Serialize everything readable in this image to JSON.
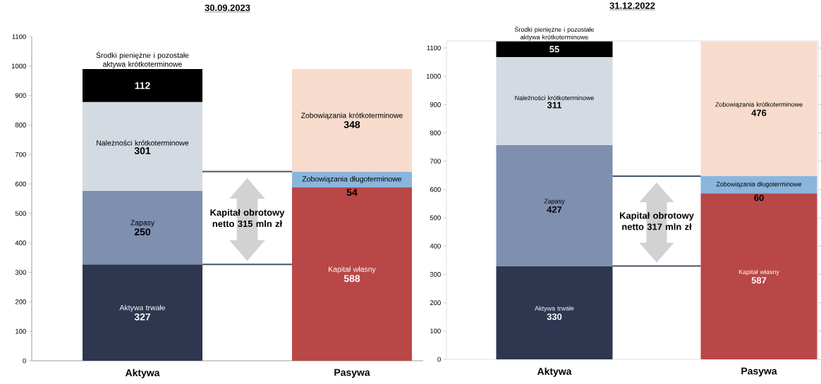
{
  "chart_data": [
    {
      "type": "bar",
      "stacked": true,
      "title": "30.09.2023",
      "categories": [
        "Aktywa",
        "Pasywa"
      ],
      "series": [
        {
          "name": "Aktywa trwałe",
          "color": "#2e3650",
          "values": [
            327,
            null
          ]
        },
        {
          "name": "Zapasy",
          "color": "#7f8fb0",
          "values": [
            250,
            null
          ]
        },
        {
          "name": "Należności krótkoterminowe",
          "color": "#d3dae2",
          "values": [
            301,
            null
          ]
        },
        {
          "name": "Środki pieniężne i pozostałe aktywa krótkoterminowe",
          "color": "#000000",
          "values": [
            112,
            null
          ]
        },
        {
          "name": "Kapitał własny",
          "color": "#b94747",
          "values": [
            null,
            588
          ]
        },
        {
          "name": "Zobowiązania długoterminowe",
          "color": "#8ab6de",
          "values": [
            null,
            54
          ]
        },
        {
          "name": "Zobowiązania krótkoterminowe",
          "color": "#f7dccd",
          "values": [
            null,
            348
          ]
        }
      ],
      "ylim": [
        0,
        1100
      ],
      "yticks": [
        0,
        100,
        200,
        300,
        400,
        500,
        600,
        700,
        800,
        900,
        1000,
        1100
      ],
      "data_labels": true,
      "annotations": [
        "Kapitał obrotowy netto 315 mln zł"
      ]
    },
    {
      "type": "bar",
      "stacked": true,
      "title": "31.12.2022",
      "categories": [
        "Aktywa",
        "Pasywa"
      ],
      "series": [
        {
          "name": "Aktywa trwałe",
          "color": "#2e3650",
          "values": [
            330,
            null
          ]
        },
        {
          "name": "Zapasy",
          "color": "#7f8fb0",
          "values": [
            427,
            null
          ]
        },
        {
          "name": "Należności krótkoterminowe",
          "color": "#d3dae2",
          "values": [
            311,
            null
          ]
        },
        {
          "name": "Środki pieniężne i pozostałe aktywa krótkoterminowe",
          "color": "#000000",
          "values": [
            55,
            null
          ]
        },
        {
          "name": "Kapitał własny",
          "color": "#b94747",
          "values": [
            null,
            587
          ]
        },
        {
          "name": "Zobowiązania długoterminowe",
          "color": "#8ab6de",
          "values": [
            null,
            60
          ]
        },
        {
          "name": "Zobowiązania krótkoterminowe",
          "color": "#f7dccd",
          "values": [
            null,
            476
          ]
        }
      ],
      "ylim": [
        0,
        1125
      ],
      "yticks": [
        0,
        100,
        200,
        300,
        400,
        500,
        600,
        700,
        800,
        900,
        1000,
        1100
      ],
      "data_labels": true,
      "annotations": [
        "Kapitał obrotowy netto 317 mln zł"
      ]
    }
  ]
}
